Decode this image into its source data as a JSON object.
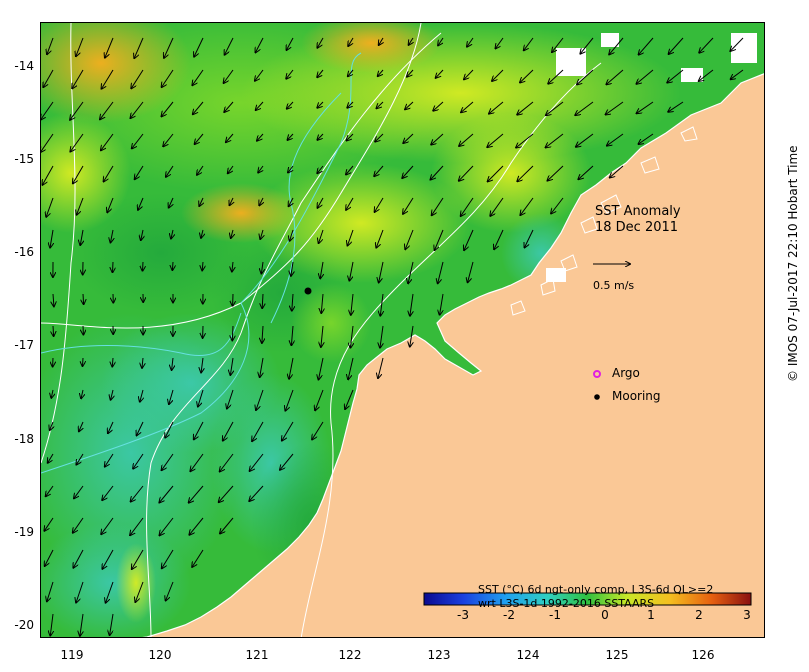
{
  "map": {
    "title_line1": "SST Anomaly",
    "title_line2": "18 Dec 2011",
    "scale_arrow_label": "0.5 m/s",
    "lat_ticks": [
      "-14",
      "-15",
      "-16",
      "-17",
      "-18",
      "-19",
      "-20"
    ],
    "lon_ticks": [
      "119",
      "120",
      "121",
      "122",
      "123",
      "124",
      "125",
      "126"
    ],
    "colors": {
      "land": "#fac896",
      "ocean_green": "#33b933",
      "ocean_teal": "#33c6a3",
      "ocean_yellow": "#d4ea25",
      "orange": "#f2b21e"
    }
  },
  "legend": {
    "argo_label": "Argo",
    "mooring_label": "Mooring",
    "argo_color": "#e020e0",
    "mooring_color": "#000000"
  },
  "colorbar": {
    "title_line1": "SST (°C) 6d ngt-only comp, L3S-6d QL>=2",
    "title_line2": "wrt L3S-1d 1992-2016 SSTAARS",
    "ticks": [
      "-3",
      "-2",
      "-1",
      "0",
      "1",
      "2",
      "3"
    ]
  },
  "credit": "© IMOS 07-Jul-2017 22:10 Hobart Time"
}
